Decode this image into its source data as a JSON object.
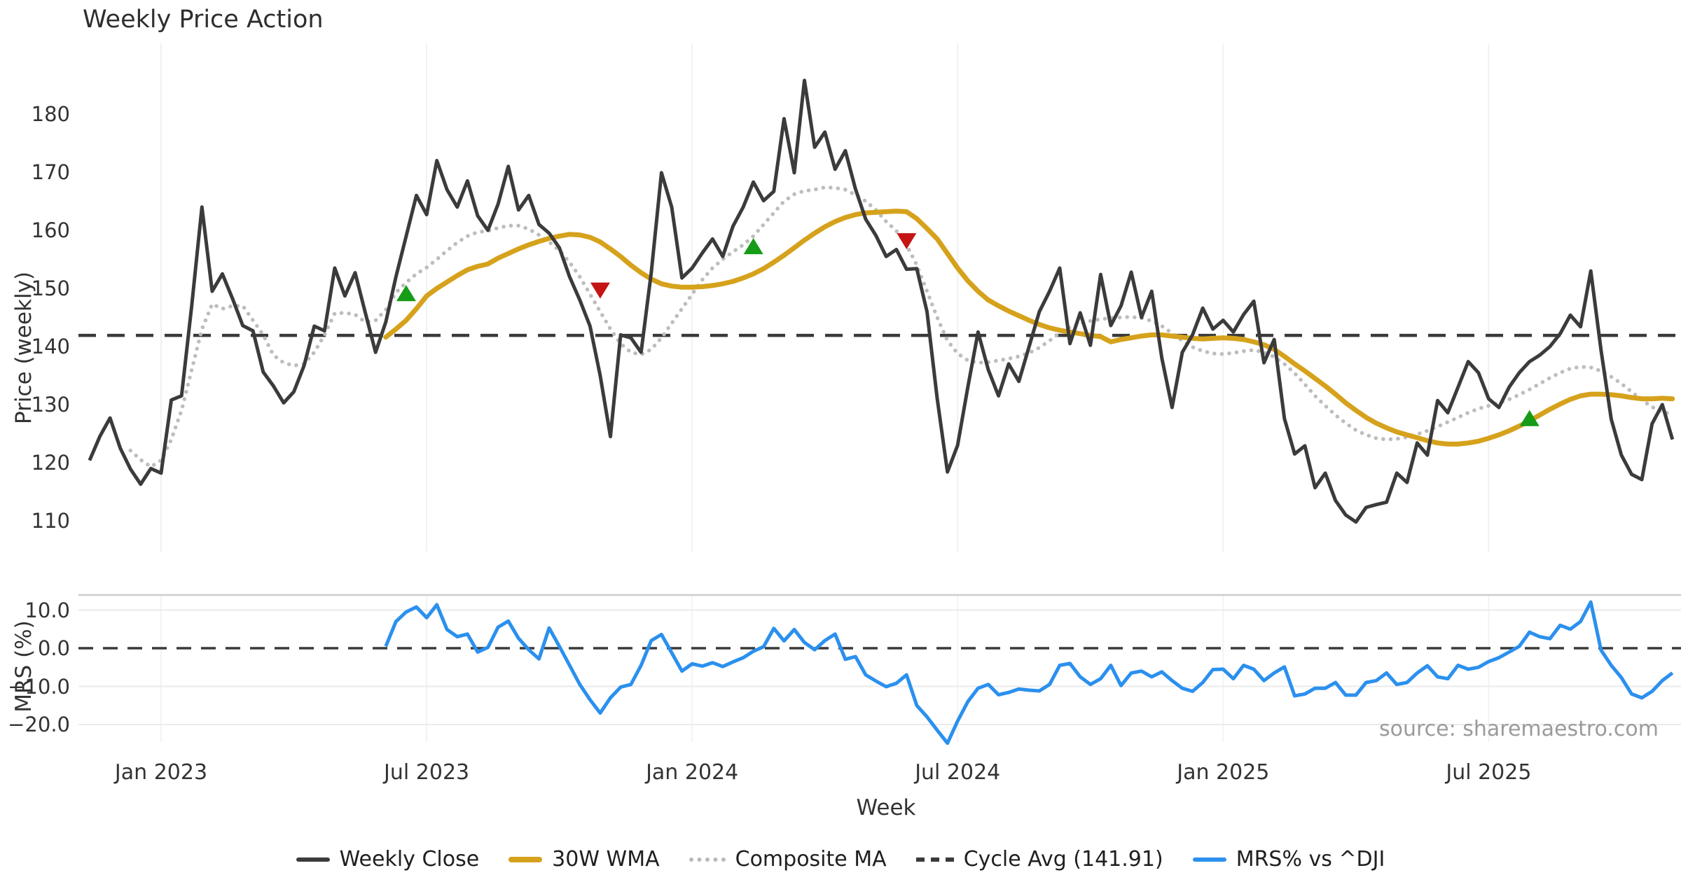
{
  "chart_data": {
    "type": "line",
    "title": "Weekly Price Action",
    "source_note": "source: sharemaestro.com",
    "x_axis": {
      "label": "Week",
      "start_date": "2022-11-07",
      "step": "1 week",
      "tick_weeks": [
        8,
        34,
        60,
        86,
        112,
        138
      ],
      "tick_labels": [
        "Jan 2023",
        "Jul 2023",
        "Jan 2024",
        "Jul 2024",
        "Jan 2025",
        "Jul 2025"
      ]
    },
    "panels": [
      {
        "y_label": "Price (weekly)",
        "ylim": [
          103.3,
          191.9
        ],
        "y_ticks": [
          180,
          170,
          160,
          150,
          140,
          130,
          120,
          110
        ],
        "y_tick_labels": [
          "180",
          "170",
          "160",
          "150",
          "140",
          "130",
          "120",
          "110"
        ],
        "grid": "vertical-only",
        "reference_line": {
          "label": "Cycle Avg (141.91)",
          "value": 141.91,
          "color": "#3a3a3a",
          "style": "dashed"
        },
        "series": [
          {
            "name": "Weekly Close",
            "color": "#3b3b3b",
            "style": "solid",
            "width": 5,
            "values": [
              null,
              120.4,
              124.5,
              127.7,
              122.5,
              118.9,
              116.3,
              119.0,
              118.2,
              130.8,
              131.5,
              147.0,
              164.0,
              149.5,
              152.5,
              148.2,
              143.6,
              142.7,
              135.6,
              133.2,
              130.3,
              132.2,
              136.7,
              143.5,
              142.7,
              153.5,
              148.7,
              152.7,
              145.8,
              139.0,
              144.2,
              152.0,
              159.0,
              166.0,
              162.7,
              172.0,
              167.0,
              164.0,
              168.5,
              162.5,
              160.0,
              164.5,
              171.0,
              163.5,
              166.0,
              161.0,
              159.5,
              157.0,
              152.0,
              148.0,
              143.5,
              135.0,
              124.5,
              142.0,
              141.5,
              139.0,
              152.7,
              169.9,
              164.0,
              151.8,
              153.5,
              156.1,
              158.5,
              155.5,
              160.7,
              164.0,
              168.3,
              165.1,
              166.7,
              179.2,
              169.9,
              185.8,
              174.3,
              176.9,
              170.5,
              173.7,
              167.1,
              161.9,
              159.1,
              155.5,
              156.7,
              153.3,
              153.4,
              146.0,
              131.0,
              118.4,
              123.0,
              133.0,
              142.5,
              136.0,
              131.5,
              137.0,
              134.0,
              140.0,
              146.0,
              149.5,
              153.5,
              140.5,
              145.8,
              140.2,
              152.4,
              143.6,
              147.0,
              152.8,
              145.0,
              149.5,
              138.0,
              129.5,
              139.0,
              142.0,
              146.6,
              143.0,
              144.5,
              142.5,
              145.5,
              147.8,
              137.2,
              141.2,
              127.6,
              121.5,
              122.9,
              115.7,
              118.2,
              113.5,
              111.0,
              109.8,
              112.3,
              112.8,
              113.2,
              118.2,
              116.6,
              123.4,
              121.3,
              130.7,
              128.6,
              133.0,
              137.4,
              135.5,
              131.0,
              129.5,
              133.0,
              135.5,
              137.4,
              138.5,
              140.0,
              142.2,
              145.4,
              143.4,
              153.0,
              139.4,
              127.5,
              121.3,
              118.0,
              117.1,
              126.7,
              130.0,
              124.0
            ]
          },
          {
            "name": "30W WMA",
            "color": "#d6a21c",
            "style": "solid",
            "width": 7,
            "values": [
              null,
              null,
              null,
              null,
              null,
              null,
              null,
              null,
              null,
              null,
              null,
              null,
              null,
              null,
              null,
              null,
              null,
              null,
              null,
              null,
              null,
              null,
              null,
              null,
              null,
              null,
              null,
              null,
              null,
              null,
              141.6,
              143.0,
              144.5,
              146.5,
              148.7,
              150.0,
              151.1,
              152.2,
              153.2,
              153.8,
              154.2,
              155.2,
              156.0,
              156.8,
              157.5,
              158.1,
              158.6,
              159.0,
              159.3,
              159.2,
              158.8,
              158.0,
              156.8,
              155.5,
              154.0,
              152.7,
              151.6,
              150.8,
              150.4,
              150.2,
              150.2,
              150.3,
              150.5,
              150.8,
              151.2,
              151.8,
              152.5,
              153.4,
              154.5,
              155.7,
              157.0,
              158.3,
              159.5,
              160.6,
              161.5,
              162.2,
              162.7,
              163.0,
              163.1,
              163.2,
              163.3,
              163.2,
              162.0,
              160.3,
              158.5,
              156.0,
              153.5,
              151.3,
              149.5,
              148.0,
              147.0,
              146.1,
              145.3,
              144.5,
              143.8,
              143.2,
              142.8,
              142.5,
              142.2,
              141.9,
              141.7,
              140.8,
              141.2,
              141.5,
              141.8,
              142.0,
              142.0,
              141.8,
              141.6,
              141.4,
              141.3,
              141.4,
              141.5,
              141.4,
              141.2,
              140.8,
              140.3,
              139.5,
              138.3,
              137.0,
              135.8,
              134.5,
              133.2,
              131.8,
              130.3,
              129.0,
              127.8,
              126.8,
              126.0,
              125.3,
              124.8,
              124.3,
              123.8,
              123.4,
              123.2,
              123.2,
              123.4,
              123.7,
              124.2,
              124.8,
              125.5,
              126.3,
              127.2,
              128.2,
              129.2,
              130.1,
              130.9,
              131.5,
              131.8,
              131.8,
              131.7,
              131.5,
              131.2,
              131.0,
              131.0,
              131.1,
              131.0
            ]
          },
          {
            "name": "Composite MA",
            "color": "#bdbdbd",
            "style": "dotted",
            "width": 5.5,
            "values": [
              null,
              null,
              null,
              null,
              null,
              122.1,
              120.5,
              119.3,
              120.4,
              124.0,
              129.0,
              136.0,
              143.0,
              147.3,
              146.5,
              147.0,
              147.0,
              144.5,
              142.0,
              138.5,
              137.2,
              136.7,
              137.0,
              139.0,
              142.0,
              145.7,
              145.8,
              145.5,
              144.2,
              144.5,
              146.3,
              149.3,
              151.0,
              152.5,
              153.6,
              155.0,
              156.5,
              157.9,
              159.0,
              159.7,
              159.9,
              160.4,
              160.8,
              160.8,
              160.2,
              159.2,
              158.0,
              156.5,
              154.5,
              152.0,
              149.0,
              146.0,
              143.0,
              140.5,
              139.0,
              138.6,
              139.5,
              141.5,
              144.0,
              146.5,
              149.0,
              151.5,
              153.5,
              155.0,
              156.3,
              157.5,
              159.0,
              161.0,
              163.0,
              165.0,
              166.2,
              166.8,
              167.0,
              167.4,
              167.3,
              167.0,
              166.1,
              165.0,
              163.5,
              161.5,
              159.9,
              157.5,
              154.0,
              149.5,
              145.0,
              141.0,
              138.8,
              137.6,
              137.2,
              137.3,
              137.6,
              137.9,
              138.3,
              138.9,
              139.8,
              141.0,
              142.3,
              143.3,
              144.0,
              144.4,
              144.7,
              144.9,
              145.0,
              145.1,
              144.9,
              144.4,
              143.5,
              142.3,
              141.0,
              139.9,
              139.2,
              138.8,
              138.7,
              138.9,
              139.2,
              139.4,
              139.0,
              138.2,
              137.0,
              135.4,
              133.5,
              131.5,
              129.8,
              128.2,
              126.8,
              125.6,
              124.8,
              124.2,
              124.0,
              124.1,
              124.4,
              124.9,
              125.5,
              126.2,
              127.0,
              127.8,
              128.6,
              129.3,
              129.8,
              130.3,
              130.9,
              131.7,
              132.6,
              133.6,
              134.6,
              135.5,
              136.2,
              136.5,
              136.4,
              135.8,
              134.8,
              133.6,
              132.2,
              130.8,
              129.6,
              128.7,
              128.4
            ]
          }
        ],
        "markers": [
          {
            "type": "buy",
            "week": 32,
            "value": 149.0,
            "color": "#169c16"
          },
          {
            "type": "sell",
            "week": 51,
            "value": 149.8,
            "color": "#c41414"
          },
          {
            "type": "buy",
            "week": 66,
            "value": 157.1,
            "color": "#169c16"
          },
          {
            "type": "sell",
            "week": 81,
            "value": 158.3,
            "color": "#c41414"
          },
          {
            "type": "buy",
            "week": 142,
            "value": 127.5,
            "color": "#169c16"
          }
        ]
      },
      {
        "y_label": "MRS (%)",
        "ylim": [
          -24.95,
          13.94
        ],
        "y_ticks": [
          10,
          0,
          -10,
          -20
        ],
        "y_tick_labels": [
          "10.0",
          "0.0",
          "−10.0",
          "−20.0"
        ],
        "grid": "horizontal",
        "reference_line": {
          "value": 0,
          "color": "#3a3a3a",
          "style": "dashed"
        },
        "series": [
          {
            "name": "MRS% vs ^DJI",
            "color": "#2b90ee",
            "style": "solid",
            "width": 5,
            "values": [
              null,
              null,
              null,
              null,
              null,
              null,
              null,
              null,
              null,
              null,
              null,
              null,
              null,
              null,
              null,
              null,
              null,
              null,
              null,
              null,
              null,
              null,
              null,
              null,
              null,
              null,
              null,
              null,
              null,
              null,
              0.5,
              7.0,
              9.5,
              10.8,
              8.0,
              11.4,
              4.9,
              3.0,
              3.7,
              -1.0,
              0.2,
              5.5,
              7.1,
              2.6,
              -0.4,
              -2.8,
              5.3,
              0.5,
              -4.5,
              -9.5,
              -13.5,
              -17.0,
              -13.0,
              -10.2,
              -9.5,
              -4.5,
              2.0,
              3.6,
              -1.2,
              -6.0,
              -4.1,
              -4.7,
              -3.8,
              -4.8,
              -3.6,
              -2.5,
              -0.8,
              0.4,
              5.2,
              1.9,
              4.9,
              1.5,
              -0.4,
              2.0,
              3.7,
              -2.9,
              -2.2,
              -7.0,
              -8.6,
              -10.1,
              -9.2,
              -7.0,
              -15.0,
              -18.0,
              -21.5,
              -24.9,
              -19.1,
              -14.0,
              -10.5,
              -9.5,
              -12.2,
              -11.6,
              -10.7,
              -11.0,
              -11.2,
              -9.5,
              -4.5,
              -4.0,
              -7.5,
              -9.5,
              -8.0,
              -4.5,
              -9.8,
              -6.5,
              -6.0,
              -7.5,
              -6.2,
              -8.5,
              -10.5,
              -11.3,
              -9.0,
              -5.6,
              -5.5,
              -8.0,
              -4.5,
              -5.5,
              -8.5,
              -6.5,
              -4.9,
              -12.5,
              -12.0,
              -10.5,
              -10.5,
              -9.0,
              -12.3,
              -12.3,
              -9.0,
              -8.5,
              -6.5,
              -9.5,
              -9.0,
              -6.5,
              -4.6,
              -7.5,
              -8.0,
              -4.5,
              -5.5,
              -5.0,
              -3.5,
              -2.5,
              -1.0,
              0.5,
              4.2,
              3.0,
              2.5,
              6.0,
              5.0,
              7.0,
              12.1,
              -0.5,
              -4.5,
              -7.7,
              -12.0,
              -13.0,
              -11.3,
              -8.5,
              -6.5
            ]
          }
        ]
      }
    ],
    "legend": [
      {
        "label": "Weekly Close",
        "swatch": "solid-dark"
      },
      {
        "label": "30W WMA",
        "swatch": "solid-gold"
      },
      {
        "label": "Composite MA",
        "swatch": "dotted-gray"
      },
      {
        "label": "Cycle Avg (141.91)",
        "swatch": "dashed-dark"
      },
      {
        "label": "MRS% vs ^DJI",
        "swatch": "solid-blue"
      }
    ]
  }
}
